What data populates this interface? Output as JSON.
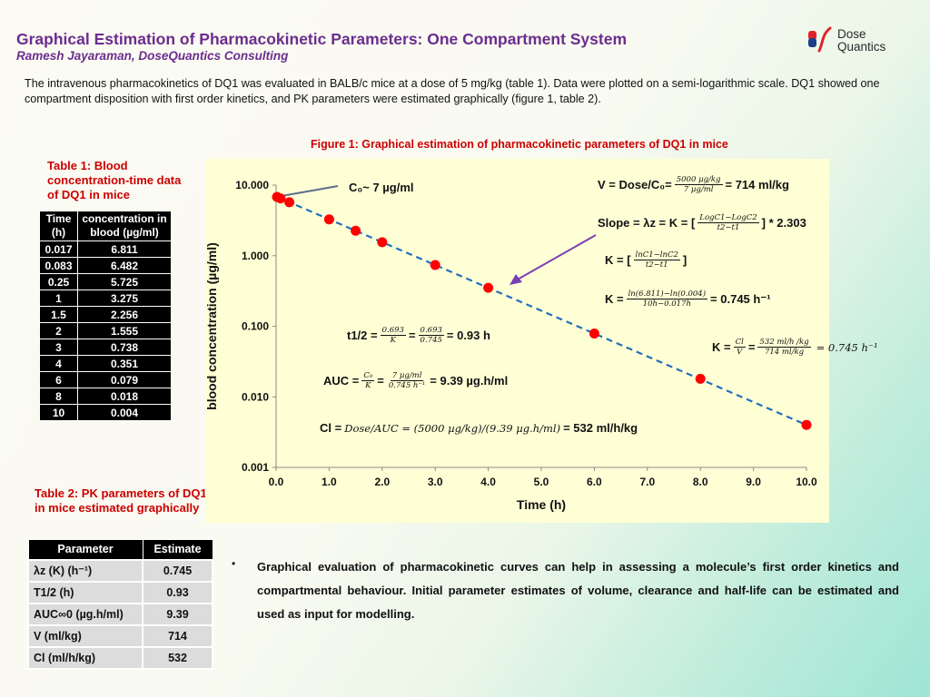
{
  "header": {
    "title": "Graphical Estimation of Pharmacokinetic Parameters: One Compartment System",
    "author": "Ramesh Jayaraman, DoseQuantics Consulting",
    "logo_line1": "Dose",
    "logo_line2": "Quantics",
    "logo_colors": {
      "accent_red": "#e0242c",
      "accent_blue": "#1d3f8a"
    }
  },
  "intro": "The intravenous pharmacokinetics of DQ1 was evaluated in BALB/c mice at a dose of 5 mg/kg (table 1). Data were plotted on a semi-logarithmic scale. DQ1 showed one compartment disposition with first order kinetics, and PK parameters were estimated graphically (figure 1, table 2).",
  "figure_title": "Figure 1: Graphical estimation of pharmacokinetic parameters of DQ1 in mice",
  "table1": {
    "title": "Table 1: Blood concentration-time data of DQ1 in mice",
    "col1": "Time (h)",
    "col2": "concentration in blood (µg/ml)",
    "rows": [
      {
        "t": "0.017",
        "c": "6.811"
      },
      {
        "t": "0.083",
        "c": "6.482"
      },
      {
        "t": "0.25",
        "c": "5.725"
      },
      {
        "t": "1",
        "c": "3.275"
      },
      {
        "t": "1.5",
        "c": "2.256"
      },
      {
        "t": "2",
        "c": "1.555"
      },
      {
        "t": "3",
        "c": "0.738"
      },
      {
        "t": "4",
        "c": "0.351"
      },
      {
        "t": "6",
        "c": "0.079"
      },
      {
        "t": "8",
        "c": "0.018"
      },
      {
        "t": "10",
        "c": "0.004"
      }
    ]
  },
  "table2": {
    "title": "Table 2: PK parameters of DQ1 in mice estimated graphically",
    "col1": "Parameter",
    "col2": "Estimate",
    "rows": [
      {
        "p": "λz (K) (h⁻¹)",
        "v": "0.745"
      },
      {
        "p": "T1/2 (h)",
        "v": "0.93"
      },
      {
        "p": "AUC∞0 (µg.h/ml)",
        "v": "9.39"
      },
      {
        "p": "V (ml/kg)",
        "v": "714"
      },
      {
        "p": "Cl (ml/h/kg)",
        "v": "532"
      }
    ]
  },
  "chart_data": {
    "type": "scatter",
    "title": "Figure 1: Graphical estimation of pharmacokinetic parameters of DQ1 in mice",
    "xlabel": "Time (h)",
    "ylabel": "blood concentration (µg/ml)",
    "xlim": [
      0,
      10
    ],
    "ylim": [
      0.001,
      10
    ],
    "yscale": "log",
    "x_ticks": [
      "0.0",
      "1.0",
      "2.0",
      "3.0",
      "4.0",
      "5.0",
      "6.0",
      "7.0",
      "8.0",
      "9.0",
      "10.0"
    ],
    "y_ticks": [
      "0.001",
      "0.010",
      "0.100",
      "1.000",
      "10.000"
    ],
    "grid": false,
    "series": [
      {
        "x": [
          0.017,
          0.083,
          0.25,
          1,
          1.5,
          2,
          3,
          4,
          6,
          8,
          10
        ],
        "y": [
          6.811,
          6.482,
          5.725,
          3.275,
          2.256,
          1.555,
          0.738,
          0.351,
          0.079,
          0.018,
          0.004
        ],
        "color": "#ff0000"
      }
    ],
    "fit_line": {
      "x": [
        0,
        10
      ],
      "y": [
        6.9,
        0.004
      ],
      "color": "#1f6fc0",
      "style": "dashed"
    },
    "annotations": {
      "c0": "C₀~ 7 µg/ml",
      "v_eq": {
        "lhs": "V = Dose/C₀=",
        "num": "5000 µg/kg",
        "den": "7 µg/ml",
        "rhs": "= 714 ml/kg"
      },
      "slope_eq": {
        "lhs": "Slope = λz = K = [",
        "num": "LogC1−LogC2",
        "den": "t2−t1",
        "rhs": "] * 2.303"
      },
      "k_eq": {
        "lhs": "K = [",
        "num": "lnC1−lnC2",
        "den": "t2−t1",
        "rhs": "]"
      },
      "k_val_eq": {
        "lhs": "K =",
        "num": "ln(6.811)−ln(0.004)",
        "den": "10h−0.017h",
        "rhs": "= 0.745 h⁻¹"
      },
      "thalf_eq": {
        "lhs": "t1/2 =",
        "num1": "0.693",
        "den1": "K",
        "mid": "=",
        "num2": "0.693",
        "den2": "0.745",
        "rhs": "= 0.93 h"
      },
      "k_cl_eq": {
        "lhs": "K =",
        "num1": "Cl",
        "den1": "V",
        "mid": "=",
        "num2": "532 ml/h /kg",
        "den2": "714 ml/kg",
        "rhs": "= 0.745 h⁻¹"
      },
      "auc_eq": {
        "lhs": "AUC =",
        "num1": "C₀",
        "den1": "K",
        "mid": "=",
        "num2": "7 µg/ml",
        "den2": "0.745 h⁻¹",
        "rhs": "= 9.39 µg.h/ml"
      },
      "cl_eq": {
        "lhs": "Cl =",
        "expr": "Dose/AUC = (5000 µg/kg)/(9.39 µg.h/ml)",
        "rhs": "= 532 ml/h/kg"
      }
    }
  },
  "bullet": "Graphical evaluation of pharmacokinetic curves can help in assessing a molecule’s first order kinetics and compartmental behaviour. Initial parameter estimates of volume, clearance and half-life can be estimated and used as input for modelling."
}
